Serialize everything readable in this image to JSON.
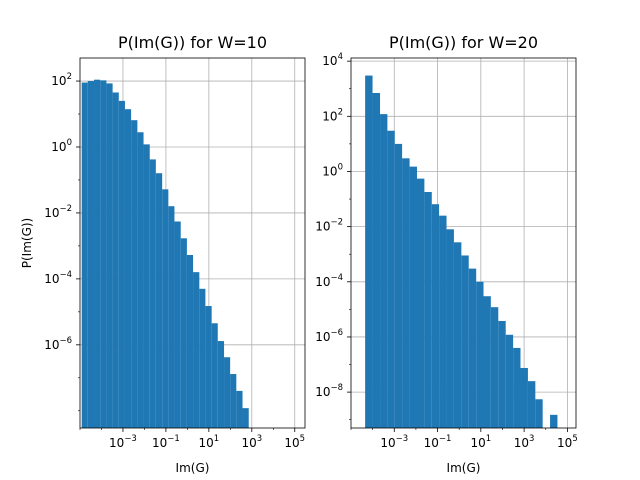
{
  "chart_data": [
    {
      "type": "bar",
      "title": "P(Im(G)) for W=10",
      "xlabel": "Im(G)",
      "ylabel": "P(Im(G))",
      "x_scale": "log",
      "y_scale": "log",
      "grid": true,
      "color": "#1f77b4",
      "xlim": [
        1e-05,
        300000.0
      ],
      "ylim": [
        3e-09,
        500
      ],
      "x_ticks": [
        {
          "base": "10",
          "exp": "−3",
          "value": 0.001
        },
        {
          "base": "10",
          "exp": "−1",
          "value": 0.1
        },
        {
          "base": "10",
          "exp": "1",
          "value": 10
        },
        {
          "base": "10",
          "exp": "3",
          "value": 1000
        },
        {
          "base": "10",
          "exp": "5",
          "value": 100000
        }
      ],
      "y_ticks": [
        {
          "base": "10",
          "exp": "−6",
          "value": 1e-06
        },
        {
          "base": "10",
          "exp": "−4",
          "value": 0.0001
        },
        {
          "base": "10",
          "exp": "−2",
          "value": 0.01
        },
        {
          "base": "10",
          "exp": "0",
          "value": 1
        },
        {
          "base": "10",
          "exp": "2",
          "value": 100
        }
      ],
      "bin_edges": [
        1.2e-05,
        2.3e-05,
        4.5e-05,
        8.7e-05,
        0.00017,
        0.00033,
        0.00064,
        0.00124,
        0.0024,
        0.0047,
        0.0091,
        0.0177,
        0.034,
        0.067,
        0.13,
        0.25,
        0.49,
        0.95,
        1.84,
        3.6,
        6.9,
        13.5,
        26,
        51,
        98,
        190,
        370,
        720
      ],
      "values": [
        90,
        100,
        110,
        105,
        85,
        45,
        25,
        14,
        6.5,
        2.8,
        1.2,
        0.42,
        0.16,
        0.052,
        0.016,
        0.0055,
        0.0017,
        0.00053,
        0.00016,
        5e-05,
        1.5e-05,
        4.5e-06,
        1.3e-06,
        4.2e-07,
        1.3e-07,
        4e-08,
        1.2e-08
      ]
    },
    {
      "type": "bar",
      "title": "P(Im(G)) for W=20",
      "xlabel": "Im(G)",
      "ylabel": "",
      "x_scale": "log",
      "y_scale": "log",
      "grid": true,
      "color": "#1f77b4",
      "xlim": [
        1e-05,
        250000.0
      ],
      "ylim": [
        5e-10,
        13000.0
      ],
      "x_ticks": [
        {
          "base": "10",
          "exp": "−3",
          "value": 0.001
        },
        {
          "base": "10",
          "exp": "−1",
          "value": 0.1
        },
        {
          "base": "10",
          "exp": "1",
          "value": 10
        },
        {
          "base": "10",
          "exp": "3",
          "value": 1000
        },
        {
          "base": "10",
          "exp": "5",
          "value": 100000
        }
      ],
      "y_ticks": [
        {
          "base": "10",
          "exp": "−8",
          "value": 1e-08
        },
        {
          "base": "10",
          "exp": "−6",
          "value": 1e-06
        },
        {
          "base": "10",
          "exp": "−4",
          "value": 0.0001
        },
        {
          "base": "10",
          "exp": "−2",
          "value": 0.01
        },
        {
          "base": "10",
          "exp": "0",
          "value": 1
        },
        {
          "base": "10",
          "exp": "2",
          "value": 100
        },
        {
          "base": "10",
          "exp": "4",
          "value": 10000
        }
      ],
      "bin_edges": [
        4.5e-05,
        9.9e-05,
        0.00022,
        0.00048,
        0.00105,
        0.0023,
        0.0051,
        0.0112,
        0.0246,
        0.054,
        0.118,
        0.26,
        0.57,
        1.26,
        2.76,
        6.1,
        13.3,
        29,
        64,
        141,
        310,
        680,
        1500,
        3300,
        7200,
        15800,
        34700
      ],
      "values": [
        3000,
        700,
        120,
        30,
        10,
        3,
        1.5,
        0.55,
        0.18,
        0.065,
        0.025,
        0.008,
        0.0027,
        0.0009,
        0.0003,
        0.0001,
        3e-05,
        1.2e-05,
        3.8e-06,
        1.2e-06,
        4e-07,
        7.5e-08,
        2.5e-08,
        5.5e-09,
        4e-10,
        1.5e-09
      ]
    }
  ]
}
